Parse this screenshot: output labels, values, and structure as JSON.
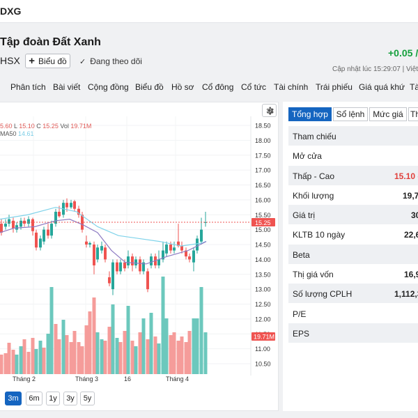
{
  "header": {
    "ticker": "DXG",
    "company_name": "Tập đoàn Đất Xanh",
    "exchange": "HSX",
    "chart_button_label": "Biểu đồ",
    "follow_label": "Đang theo dõi",
    "price_change": "+0.05 /",
    "updated_label": "Cập nhật lúc",
    "updated_time": "15:29:07",
    "updated_suffix": "Việt N"
  },
  "nav_tabs": [
    "Phân tích",
    "Bài viết",
    "Cộng đồng",
    "Biểu đồ",
    "Hồ sơ",
    "Cổ đông",
    "Cổ tức",
    "Tài chính",
    "Trái phiếu",
    "Giá quá khứ",
    "Tà"
  ],
  "chart": {
    "legend_ohlc": {
      "o_value": "5.60",
      "l_label": "L",
      "l_value": "15.10",
      "c_label": "C",
      "c_value": "15.25",
      "vol_label": "Vol",
      "vol_value": "19.71M"
    },
    "legend_ma": {
      "label": "MA50",
      "value": "14.61"
    },
    "price_badge": "15.25",
    "volume_badge": "19.71M",
    "colors": {
      "up": "#26a69a",
      "down": "#ef5350",
      "ma50": "#7fd3ea",
      "ma20": "#8e7cc3"
    },
    "time_range_buttons": [
      "3m",
      "6m",
      "1y",
      "3y",
      "5y"
    ],
    "active_range": "3m"
  },
  "chart_data": {
    "type": "candlestick",
    "y_axis": {
      "min": 10.5,
      "max": 18.5,
      "ticks": [
        "18.50",
        "18.00",
        "17.50",
        "17.00",
        "16.50",
        "16.00",
        "15.50",
        "15.00",
        "14.50",
        "14.00",
        "13.50",
        "13.00",
        "12.50",
        "12.00",
        "11.50",
        "11.00",
        "10.50"
      ]
    },
    "x_labels": [
      "Tháng 2",
      "Tháng 3",
      "16",
      "Tháng 4"
    ],
    "last_close": 15.25,
    "ma50_last": 14.61,
    "last_volume": "19.71M",
    "grid": true
  },
  "overview": {
    "tabs": [
      "Tổng hợp",
      "Sổ lệnh",
      "Mức giá",
      "Th"
    ],
    "active_tab": "Tổng hợp",
    "rows": [
      {
        "label": "Tham chiếu",
        "value": ""
      },
      {
        "label": "Mở cửa",
        "value": ""
      },
      {
        "label": "Thấp - Cao",
        "value": "15.10 -"
      },
      {
        "label": "Khối lượng",
        "value": "19,7"
      },
      {
        "label": "Giá trị",
        "value": "30"
      },
      {
        "label": "KLTB 10 ngày",
        "value": "22,6"
      },
      {
        "label": "Beta",
        "value": ""
      },
      {
        "label": "Thị giá vốn",
        "value": "16,9"
      },
      {
        "label": "Số lượng CPLH",
        "value": "1,112,3"
      },
      {
        "label": "P/E",
        "value": ""
      },
      {
        "label": "EPS",
        "value": ""
      }
    ]
  }
}
